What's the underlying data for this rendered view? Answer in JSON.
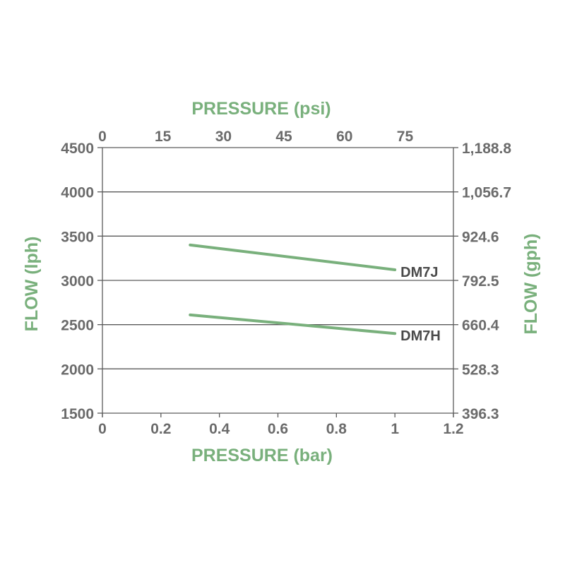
{
  "chart_data": {
    "type": "line",
    "top_xlabel": "PRESSURE (psi)",
    "xlabel": "PRESSURE (bar)",
    "ylabel": "FLOW (lph)",
    "right_ylabel": "FLOW (gph)",
    "xlim": [
      0,
      1.2
    ],
    "ylim": [
      1500,
      4500
    ],
    "x_ticks": [
      "0",
      "0.2",
      "0.4",
      "0.6",
      "0.8",
      "1",
      "1.2"
    ],
    "x_tick_values": [
      0,
      0.2,
      0.4,
      0.6,
      0.8,
      1,
      1.2
    ],
    "top_x_ticks": [
      "0",
      "15",
      "30",
      "45",
      "60",
      "75"
    ],
    "top_x_tick_values": [
      0,
      15,
      30,
      45,
      60,
      75
    ],
    "top_xlim": [
      0,
      87
    ],
    "y_ticks": [
      "1500",
      "2000",
      "2500",
      "3000",
      "3500",
      "4000",
      "4500"
    ],
    "y_tick_values": [
      1500,
      2000,
      2500,
      3000,
      3500,
      4000,
      4500
    ],
    "right_y_ticks": [
      "396.3",
      "528.3",
      "660.4",
      "792.5",
      "924.6",
      "1,056.7",
      "1,188.8"
    ],
    "right_y_tick_values": [
      396.3,
      528.3,
      660.4,
      792.5,
      924.6,
      1056.7,
      1188.8
    ],
    "grid": "horizontal",
    "series": [
      {
        "name": "DM7J",
        "x": [
          0.3,
          1.0
        ],
        "y": [
          3400,
          3120
        ]
      },
      {
        "name": "DM7H",
        "x": [
          0.3,
          1.0
        ],
        "y": [
          2610,
          2400
        ]
      }
    ],
    "colors": {
      "line": "#79b07c",
      "title": "#79b07c",
      "tick": "#6b6b6b",
      "grid": "#5a5a5a",
      "label": "#4a4a4a"
    }
  }
}
